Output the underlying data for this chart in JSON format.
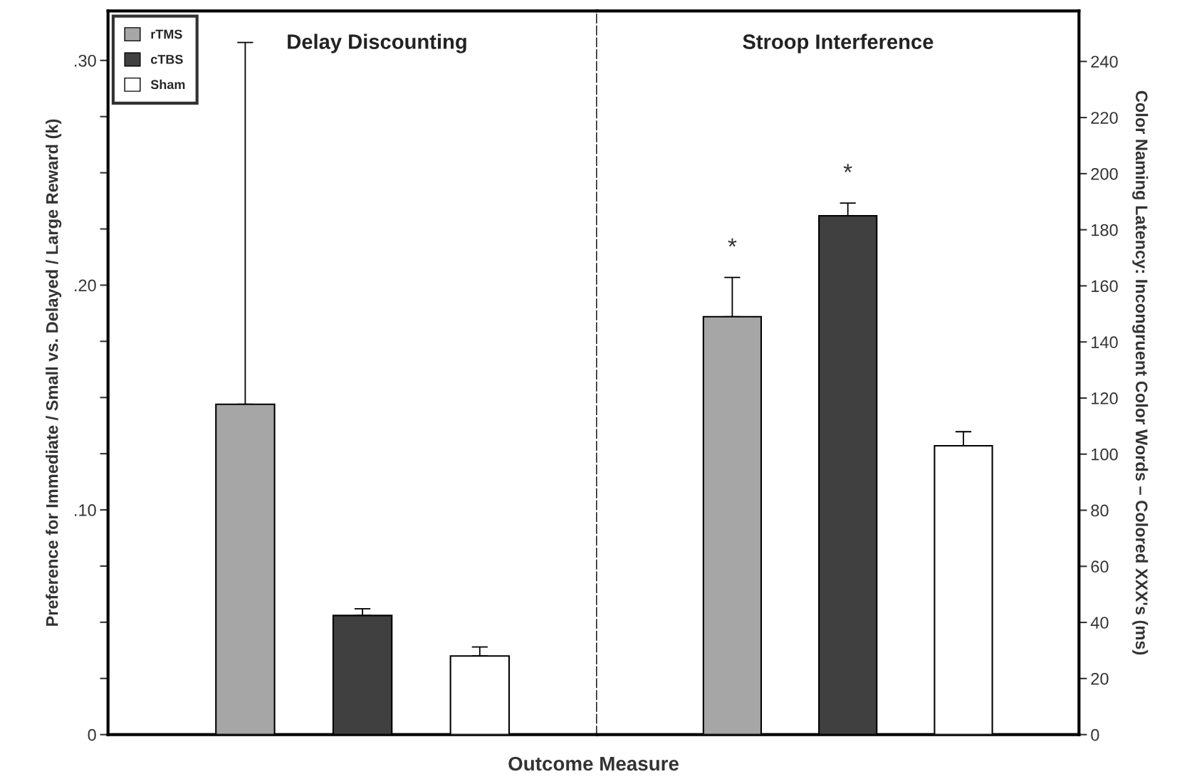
{
  "chart_data": [
    {
      "type": "bar",
      "title": "Delay Discounting",
      "xlabel": "Outcome Measure",
      "ylabel": "Preference for Immediate / Small vs. Delayed / Large Reward (k)",
      "categories": [
        null
      ],
      "legend": "top left",
      "grid": false,
      "series": [
        {
          "name": "rTMS",
          "color": "#a6a6a6",
          "values": [
            0.147
          ],
          "errors": [
            [
              0.147,
              0.308
            ]
          ]
        },
        {
          "name": "cTBS",
          "color": "#404040",
          "values": [
            0.053
          ],
          "errors": [
            [
              0.053,
              0.056
            ]
          ]
        },
        {
          "name": "Sham",
          "color": "#ffffff",
          "values": [
            0.035
          ],
          "errors": [
            [
              0.035,
              0.039
            ]
          ]
        }
      ],
      "ylim": [
        0,
        0.322
      ],
      "yticks": [
        {
          "value": 0,
          "label": "0"
        },
        {
          "value": 0.025,
          "label": null
        },
        {
          "value": 0.05,
          "label": null
        },
        {
          "value": 0.075,
          "label": null
        },
        {
          "value": 0.1,
          "label": ".10"
        },
        {
          "value": 0.125,
          "label": null
        },
        {
          "value": 0.15,
          "label": null
        },
        {
          "value": 0.175,
          "label": null
        },
        {
          "value": 0.2,
          "label": ".20"
        },
        {
          "value": 0.225,
          "label": null
        },
        {
          "value": 0.25,
          "label": null
        },
        {
          "value": 0.275,
          "label": null
        },
        {
          "value": 0.3,
          "label": ".30"
        }
      ]
    },
    {
      "type": "bar",
      "title": "Stroop Interference",
      "ylabel": "Color Naming Latency: Incongruent Color Words – Colored XXX's (ms)",
      "categories": [
        null
      ],
      "legend": false,
      "grid": false,
      "series": [
        {
          "color": "#a6a6a6",
          "values": [
            149
          ],
          "errors": [
            [
              149,
              163
            ]
          ]
        },
        {
          "color": "#404040",
          "values": [
            185
          ],
          "errors": [
            [
              185,
              189.5
            ]
          ]
        },
        {
          "color": "#ffffff",
          "values": [
            103
          ],
          "errors": [
            [
              103,
              108
            ]
          ]
        }
      ],
      "annotations": [
        "*",
        "*"
      ],
      "ylim": [
        0,
        258
      ],
      "yticks": [
        0,
        20,
        40,
        60,
        80,
        100,
        120,
        140,
        160,
        180,
        200,
        220,
        240
      ]
    }
  ]
}
